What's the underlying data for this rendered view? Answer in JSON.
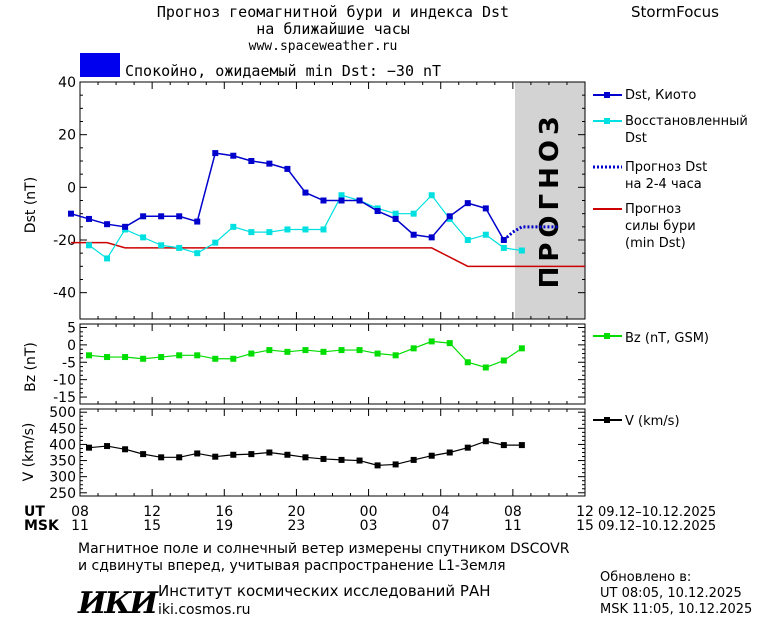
{
  "header": {
    "title_line1": "Прогноз геомагнитной бури и индекса Dst",
    "title_line2": "на ближайшие часы",
    "website": "www.spaceweather.ru",
    "brand": "StormFocus",
    "status_text": "Спокойно, ожидаемый min Dst: −30 nT"
  },
  "forecast_band_label": "ПРОГНОЗ",
  "legend": {
    "dst_kyoto": "Dst, Киото",
    "dst_restored_1": "Восстановленный",
    "dst_restored_2": "Dst",
    "dst_forecast_1": "Прогноз Dst",
    "dst_forecast_2": "на 2-4 часа",
    "storm_1": "Прогноз",
    "storm_2": "силы бури",
    "storm_3": "(min Dst)",
    "bz": "Bz (nT, GSM)",
    "v": "V (km/s)"
  },
  "axes": {
    "dst_ylabel": "Dst (nT)",
    "bz_ylabel": "Bz (nT)",
    "v_ylabel": "V (km/s)",
    "dst_ticks": [
      "40",
      "20",
      "0",
      "-20",
      "-40"
    ],
    "bz_ticks": [
      "5",
      "0",
      "-5",
      "-10",
      "-15"
    ],
    "v_ticks": [
      "500",
      "450",
      "400",
      "350",
      "300",
      "250"
    ],
    "ut_label": "UT",
    "msk_label": "MSK",
    "ut_ticks": [
      "08",
      "12",
      "16",
      "20",
      "00",
      "04",
      "08",
      "12"
    ],
    "msk_ticks": [
      "11",
      "15",
      "19",
      "23",
      "03",
      "07",
      "11",
      "15"
    ],
    "ut_range": "09.12–10.12.2025",
    "msk_range": "09.12–10.12.2025"
  },
  "footer": {
    "note_line1": "Магнитное поле и солнечный ветер измерены спутником DSCOVR",
    "note_line2": "и сдвинуты вперед, учитывая распространение L1-Земля",
    "institute": "Институт космических исследований РАН",
    "institute_site": "iki.cosmos.ru",
    "logo_text": "ИКИ",
    "updated_label": "Обновлено в:",
    "updated_ut": "UT   08:05, 10.12.2025",
    "updated_msk": "MSK 11:05, 10.12.2025"
  },
  "colors": {
    "status_box": "#0000ee",
    "dst_kyoto": "#0000cc",
    "dst_restored": "#00e0e0",
    "dst_forecast": "#0000cc",
    "storm_forecast": "#cc0000",
    "bz": "#00dd00",
    "v": "#000000",
    "forecast_band": "#d3d3d3"
  },
  "chart_data": {
    "type": "line",
    "x_unit": "hours since 08:00 UT 09.12.2025",
    "x_range": [
      0,
      28
    ],
    "forecast_start": 24,
    "panels": {
      "dst": {
        "ylim": [
          -50,
          40
        ],
        "series": [
          {
            "name": "Dst, Киото",
            "x": [
              -0.5,
              0.5,
              1.5,
              2.5,
              3.5,
              4.5,
              5.5,
              6.5,
              7.5,
              8.5,
              9.5,
              10.5,
              11.5,
              12.5,
              13.5,
              14.5,
              15.5,
              16.5,
              17.5,
              18.5,
              19.5,
              20.5,
              21.5,
              22.5,
              23.5
            ],
            "y": [
              -10,
              -12,
              -14,
              -15,
              -11,
              -11,
              -11,
              -13,
              13,
              12,
              10,
              9,
              7,
              -2,
              -5,
              -5,
              -5,
              -9,
              -12,
              -18,
              -19,
              -11,
              -6,
              -8,
              -20
            ]
          },
          {
            "name": "Восстановленный Dst",
            "x": [
              0.5,
              1.5,
              2.5,
              3.5,
              4.5,
              5.5,
              6.5,
              7.5,
              8.5,
              9.5,
              10.5,
              11.5,
              12.5,
              13.5,
              14.5,
              15.5,
              16.5,
              17.5,
              18.5,
              19.5,
              20.5,
              21.5,
              22.5,
              23.5,
              24.5
            ],
            "y": [
              -22,
              -27,
              -16,
              -19,
              -22,
              -23,
              -25,
              -21,
              -15,
              -17,
              -17,
              -16,
              -16,
              -16,
              -3,
              -5,
              -8,
              -10,
              -10,
              -3,
              -12,
              -20,
              -18,
              -23,
              -24
            ]
          },
          {
            "name": "Прогноз Dst на 2-4 часа",
            "x": [
              23.5,
              24,
              24.5,
              25,
              25.5,
              26,
              26.5
            ],
            "y": [
              -20,
              -17,
              -15,
              -15,
              -15,
              -15,
              -15
            ]
          },
          {
            "name": "Прогноз силы бури (min Dst)",
            "x": [
              -0.5,
              1.5,
              2.5,
              19.5,
              21.5,
              28
            ],
            "y": [
              -21,
              -21,
              -23,
              -23,
              -30,
              -30
            ]
          }
        ]
      },
      "bz": {
        "ylim": [
          -17,
          6
        ],
        "series": [
          {
            "name": "Bz (nT, GSM)",
            "x": [
              0.5,
              1.5,
              2.5,
              3.5,
              4.5,
              5.5,
              6.5,
              7.5,
              8.5,
              9.5,
              10.5,
              11.5,
              12.5,
              13.5,
              14.5,
              15.5,
              16.5,
              17.5,
              18.5,
              19.5,
              20.5,
              21.5,
              22.5,
              23.5,
              24.5
            ],
            "y": [
              -3,
              -3.5,
              -3.5,
              -4,
              -3.5,
              -3,
              -3,
              -4,
              -4,
              -2.5,
              -1.5,
              -2,
              -1.5,
              -2,
              -1.5,
              -1.5,
              -2.5,
              -3,
              -1,
              1,
              0.5,
              -5,
              -6.5,
              -4.5,
              -1
            ]
          }
        ]
      },
      "v": {
        "ylim": [
          240,
          510
        ],
        "series": [
          {
            "name": "V (km/s)",
            "x": [
              0.5,
              1.5,
              2.5,
              3.5,
              4.5,
              5.5,
              6.5,
              7.5,
              8.5,
              9.5,
              10.5,
              11.5,
              12.5,
              13.5,
              14.5,
              15.5,
              16.5,
              17.5,
              18.5,
              19.5,
              20.5,
              21.5,
              22.5,
              23.5,
              24.5
            ],
            "y": [
              390,
              395,
              385,
              370,
              360,
              360,
              372,
              362,
              368,
              370,
              375,
              368,
              360,
              355,
              352,
              350,
              335,
              338,
              352,
              365,
              375,
              390,
              410,
              398,
              398
            ]
          }
        ]
      }
    }
  }
}
